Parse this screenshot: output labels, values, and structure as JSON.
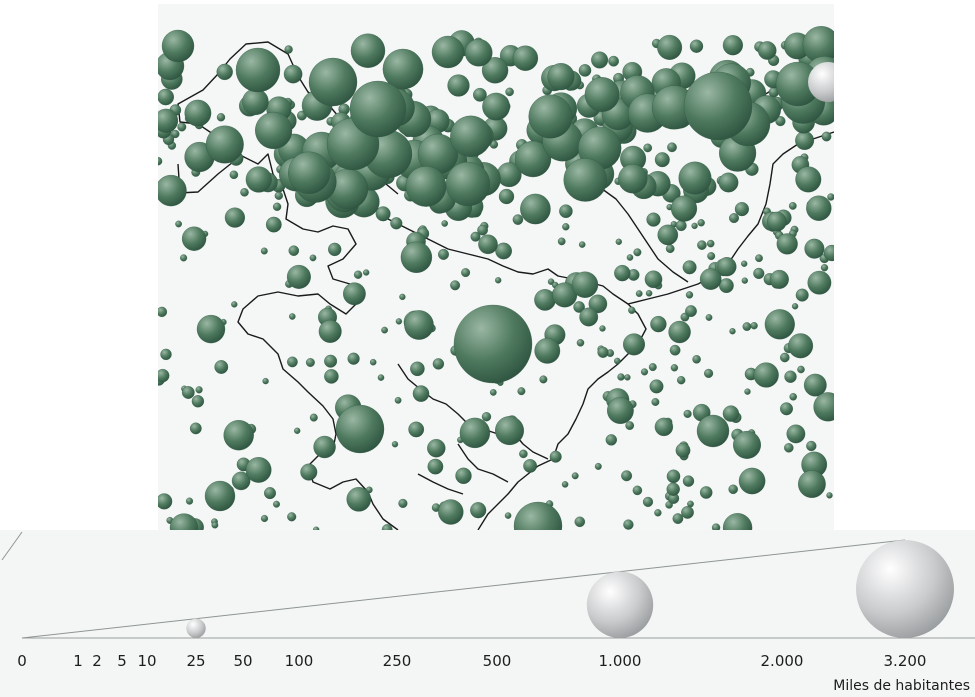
{
  "legend": {
    "unit_label": "Miles de habitantes",
    "ticks": [
      {
        "label": "0",
        "value": 0
      },
      {
        "label": "1",
        "value": 1
      },
      {
        "label": "2",
        "value": 2
      },
      {
        "label": "5",
        "value": 5
      },
      {
        "label": "10",
        "value": 10
      },
      {
        "label": "25",
        "value": 25
      },
      {
        "label": "50",
        "value": 50
      },
      {
        "label": "100",
        "value": 100
      },
      {
        "label": "250",
        "value": 250
      },
      {
        "label": "500",
        "value": 500
      },
      {
        "label": "1.000",
        "value": 1000
      },
      {
        "label": "2.000",
        "value": 2000
      },
      {
        "label": "3.200",
        "value": 3200
      }
    ],
    "sample_spheres": [
      {
        "value": 25
      },
      {
        "value": 1000
      },
      {
        "value": 3200
      }
    ]
  },
  "colors": {
    "sphere": "#4f7a5f",
    "sphere_light": "#9ab7a3",
    "sphere_dark": "#2e5440",
    "legend_sphere": "#c9cbcc",
    "boundary": "#1a1a1a",
    "map_background": "#f4f7f6",
    "legend_background": "#f3f6f5"
  }
}
